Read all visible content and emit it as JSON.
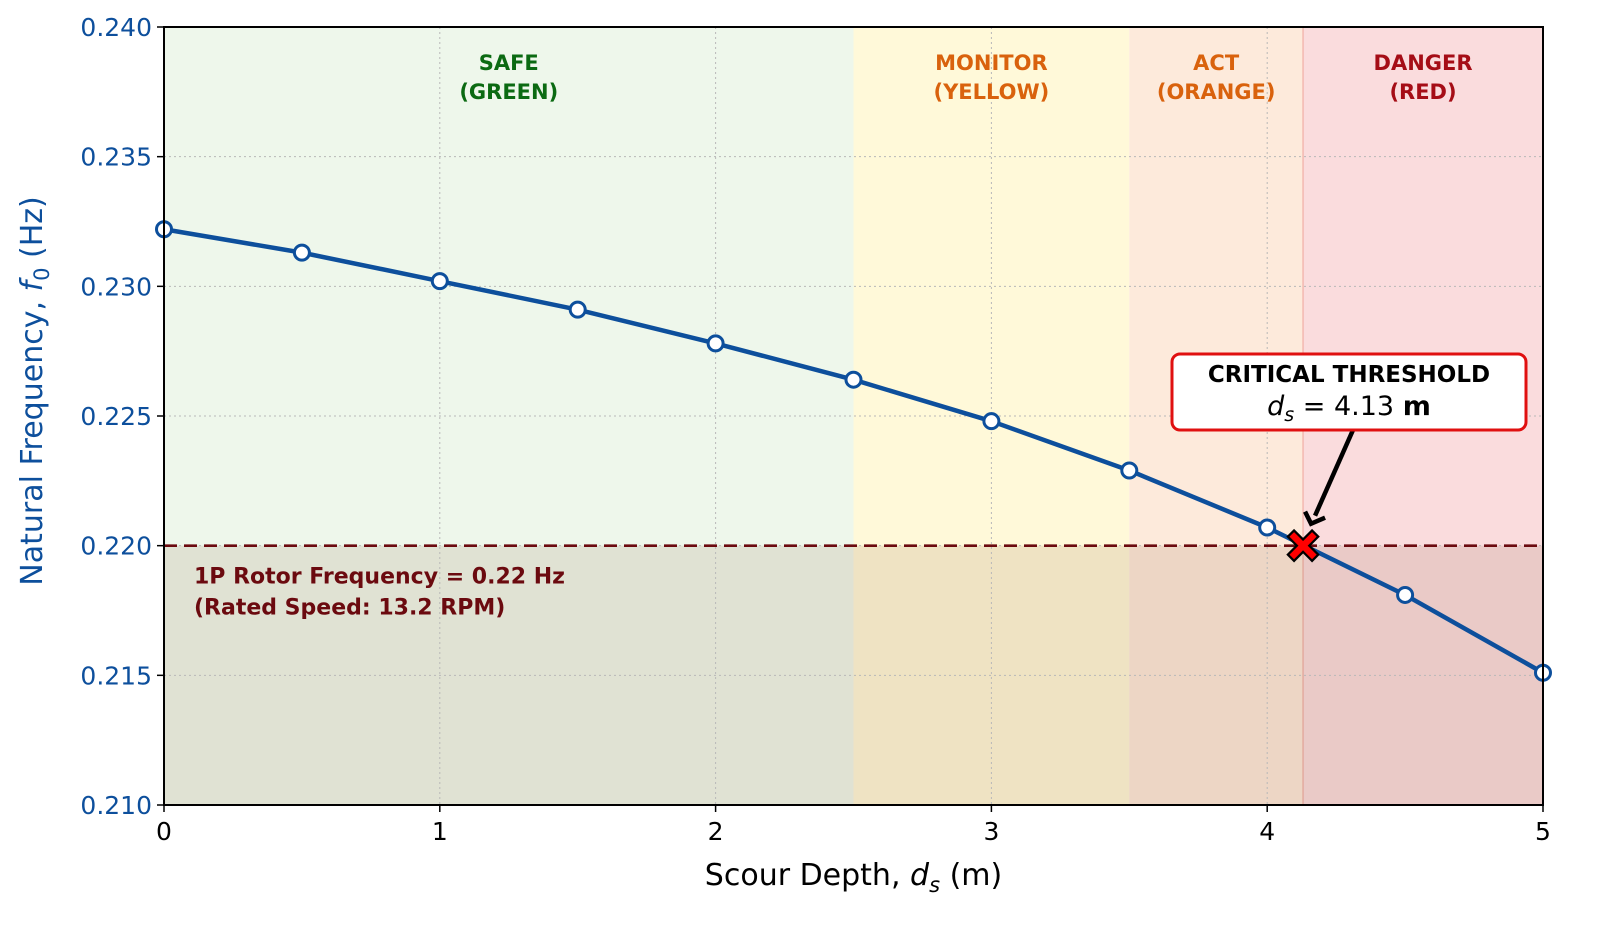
{
  "chart_data": {
    "type": "line",
    "title": "",
    "xlabel": "Scour Depth, d_s (m)",
    "xlabel_parts": {
      "prefix": "Scour Depth, ",
      "var": "d",
      "sub": "s",
      "suffix": " (m)"
    },
    "ylabel": "Natural Frequency, f_0 (Hz)",
    "ylabel_parts": {
      "prefix": "Natural Frequency, ",
      "var": "f",
      "sub": "0",
      "suffix": " (Hz)"
    },
    "xlim": [
      0,
      5
    ],
    "ylim": [
      0.21,
      0.24
    ],
    "xticks": [
      0,
      1,
      2,
      3,
      4,
      5
    ],
    "xtick_labels": [
      "0",
      "1",
      "2",
      "3",
      "4",
      "5"
    ],
    "yticks": [
      0.21,
      0.215,
      0.22,
      0.225,
      0.23,
      0.235,
      0.24
    ],
    "ytick_labels": [
      "0.210",
      "0.215",
      "0.220",
      "0.225",
      "0.230",
      "0.235",
      "0.240"
    ],
    "grid": true,
    "series": [
      {
        "name": "Natural frequency f0",
        "color": "#0d4f9c",
        "marker": "open-circle",
        "x": [
          0,
          0.5,
          1,
          1.5,
          2,
          2.5,
          3,
          3.5,
          4,
          4.5,
          5
        ],
        "y": [
          0.2322,
          0.2313,
          0.2302,
          0.2291,
          0.2278,
          0.2264,
          0.2248,
          0.2229,
          0.2207,
          0.2181,
          0.2151
        ]
      }
    ],
    "zones": [
      {
        "name": "SAFE",
        "sub": "(GREEN)",
        "x0": 0,
        "x1": 2.5,
        "fill": "#eef7eb",
        "text_color": "#0b6a12"
      },
      {
        "name": "MONITOR",
        "sub": "(YELLOW)",
        "x0": 2.5,
        "x1": 3.5,
        "fill": "#fff9d9",
        "text_color": "#d9620d"
      },
      {
        "name": "ACT",
        "sub": "(ORANGE)",
        "x0": 3.5,
        "x1": 4.13,
        "fill": "#fdeadb",
        "text_color": "#d9620d"
      },
      {
        "name": "DANGER",
        "sub": "(RED)",
        "x0": 4.13,
        "x1": 5,
        "fill": "#fadcdd",
        "text_color": "#a50d16"
      }
    ],
    "below_threshold_shade": {
      "y_max": 0.22,
      "color": "#7a4a2a",
      "opacity": 0.12
    },
    "reference_line": {
      "y": 0.22,
      "style": "dashed",
      "color": "#6b0a0f",
      "label_line1": "1P Rotor Frequency = 0.22 Hz",
      "label_line2": "(Rated Speed: 13.2 RPM)"
    },
    "critical_point": {
      "x": 4.13,
      "y": 0.22,
      "marker": "X",
      "color": "#ff0000",
      "annotation_title": "CRITICAL THRESHOLD",
      "annotation_var": "d",
      "annotation_sub": "s",
      "annotation_eq": " = 4.13 ",
      "annotation_unit": "m",
      "box_border": "#e01010"
    }
  }
}
